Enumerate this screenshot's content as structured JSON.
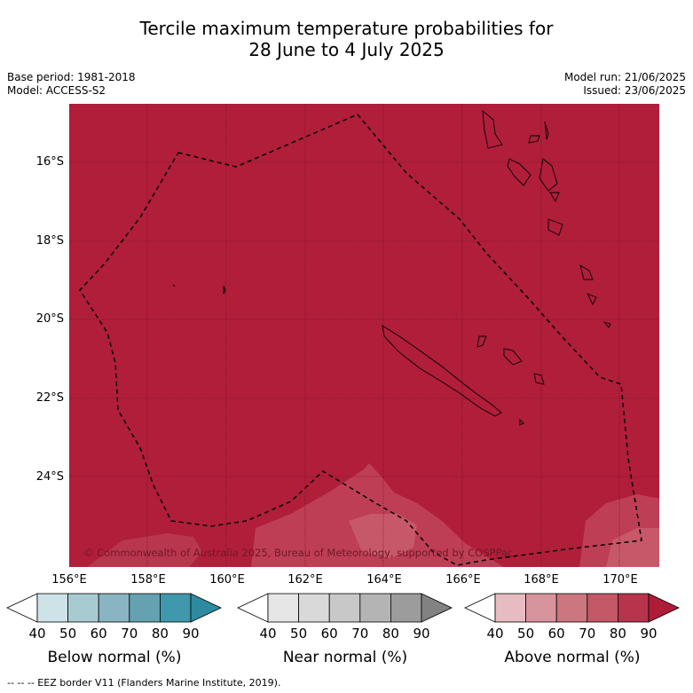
{
  "title": {
    "line1": "Tercile maximum temperature probabilities for",
    "line2": "28 June to 4 July 2025"
  },
  "meta": {
    "base_period": "Base period: 1981-2018",
    "model": "Model: ACCESS-S2",
    "model_run": "Model run: 21/06/2025",
    "issued": "Issued: 23/06/2025"
  },
  "map": {
    "copyright": "© Commonwealth of Australia 2025, Bureau of Meteorology, supported by COSPPac",
    "background_color": "#b01e3a",
    "lighter_color": "#c14a5c",
    "lat_labels": [
      "16°S",
      "18°S",
      "20°S",
      "22°S",
      "24°S"
    ],
    "lon_labels": [
      "156°E",
      "158°E",
      "160°E",
      "162°E",
      "164°E",
      "166°E",
      "168°E",
      "170°E"
    ]
  },
  "colorbars": [
    {
      "label": "Below normal (%)",
      "ticks": [
        "40",
        "50",
        "60",
        "70",
        "80",
        "90"
      ],
      "colors": [
        "#ffffff",
        "#cde3e8",
        "#a8cbd2",
        "#88b5c1",
        "#65a1b0",
        "#3f98ab",
        "#2e8aa0"
      ]
    },
    {
      "label": "Near normal (%)",
      "ticks": [
        "40",
        "50",
        "60",
        "70",
        "80",
        "90"
      ],
      "colors": [
        "#ffffff",
        "#e6e6e6",
        "#d9d9d9",
        "#c8c8c8",
        "#b4b4b4",
        "#9c9c9c",
        "#828282"
      ]
    },
    {
      "label": "Above normal (%)",
      "ticks": [
        "40",
        "50",
        "60",
        "70",
        "80",
        "90"
      ],
      "colors": [
        "#ffffff",
        "#e6bcc2",
        "#d8949c",
        "#cc7680",
        "#c45866",
        "#b8344c",
        "#ae1c38"
      ]
    }
  ],
  "footer": "--  --  -- EEZ border V11 (Flanders Marine Institute, 2019)."
}
